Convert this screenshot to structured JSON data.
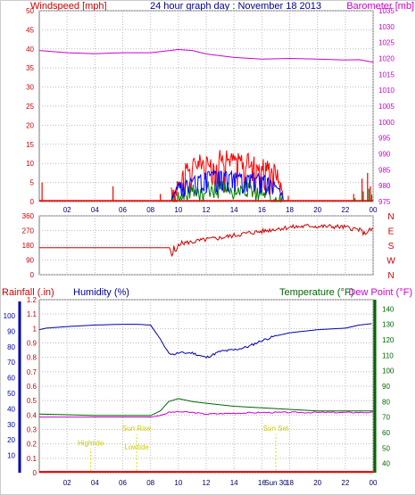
{
  "header": {
    "windspeed_label": "Windspeed [mph]",
    "title": "24 hour graph day : November 18 2013",
    "barometer_label": "Barometer [mb]"
  },
  "bottom_header": {
    "rainfall_label": "Rainfall (.in)",
    "humidity_label": "Humidity (%)",
    "temperature_label": "Temperature (°F)",
    "dewpoint_label": "Dew Point (°F)"
  },
  "colors": {
    "wind": "#ff0000",
    "gust": "#ff0000",
    "avg": "#0000ff",
    "low": "#008000",
    "barometer": "#cc00cc",
    "direction": "#cc0000",
    "humidity": "#0000aa",
    "temperature": "#006600",
    "dewpoint": "#cc00cc",
    "rain": "#ff0000",
    "events": "#dddd00",
    "grid": "#bbbbbb"
  },
  "chart_data": [
    {
      "type": "bar",
      "name": "wind-panel",
      "x_ticks": [
        "02",
        "04",
        "06",
        "08",
        "10",
        "12",
        "14",
        "16",
        "18",
        "20",
        "22",
        "00"
      ],
      "y_left_ticks": [
        "0",
        "5",
        "10",
        "15",
        "20",
        "25",
        "30",
        "35",
        "40",
        "45",
        "50"
      ],
      "y_right_ticks": [
        "975",
        "980",
        "985",
        "990",
        "995",
        "1000",
        "1005",
        "1010",
        "1015",
        "1020",
        "1025",
        "1030",
        "1035"
      ],
      "ylim_left": [
        0,
        50
      ],
      "ylim_right": [
        975,
        1035
      ],
      "barometer_series": {
        "x": [
          0,
          2,
          4,
          6,
          8,
          10,
          11,
          12,
          14,
          16,
          18,
          20,
          22,
          23,
          24
        ],
        "y": [
          1022.5,
          1021.8,
          1021.5,
          1021.8,
          1021.8,
          1022.8,
          1022.5,
          1021.4,
          1020.3,
          1019.8,
          1020.0,
          1019.8,
          1019.5,
          1019.6,
          1018.8
        ]
      },
      "wind_gust_envelope": {
        "x": [
          9.5,
          10,
          11,
          12,
          13,
          14,
          15,
          16,
          17,
          17.6
        ],
        "y": [
          2,
          6,
          9.5,
          11,
          11.5,
          11,
          10.5,
          10,
          8,
          1
        ]
      },
      "wind_avg_envelope": {
        "x": [
          9.5,
          10,
          11,
          12,
          13,
          14,
          15,
          16,
          17,
          17.6
        ],
        "y": [
          1,
          4,
          6,
          7.5,
          7.5,
          7,
          7,
          6.5,
          4.5,
          0.5
        ]
      },
      "wind_low_envelope": {
        "x": [
          9.5,
          10,
          11,
          12,
          13,
          14,
          15,
          16,
          17,
          17.6
        ],
        "y": [
          0.5,
          1.5,
          2.5,
          4,
          3.5,
          3.5,
          3,
          2.5,
          1.5,
          0
        ]
      },
      "wind_spikes": {
        "x": [
          0.2,
          5.3,
          8.7,
          9.7,
          17.9,
          22.6,
          23.2,
          23.6,
          23.8
        ],
        "y": [
          5,
          4,
          2,
          2,
          1.5,
          2,
          6,
          7.5,
          4
        ]
      }
    },
    {
      "type": "line",
      "name": "direction-panel",
      "x_ticks": [
        "02",
        "04",
        "06",
        "08",
        "10",
        "12",
        "14",
        "16",
        "18",
        "20",
        "22",
        "00"
      ],
      "y_ticks": [
        "0",
        "90",
        "180",
        "270",
        "360"
      ],
      "compass": [
        "N",
        "W",
        "S",
        "E",
        "N"
      ],
      "ylim": [
        0,
        360
      ],
      "x": [
        0,
        9.4,
        9.45,
        9.55,
        9.7,
        9.8,
        10,
        11,
        12,
        13,
        14,
        15,
        16,
        17,
        18,
        19,
        19.5,
        20,
        21,
        22,
        23,
        23.4,
        23.6,
        24
      ],
      "y": [
        165,
        165,
        140,
        105,
        175,
        120,
        190,
        200,
        215,
        225,
        240,
        255,
        265,
        280,
        290,
        295,
        300,
        295,
        295,
        290,
        275,
        250,
        265,
        280
      ]
    },
    {
      "type": "line",
      "name": "humidity-temperature-panel",
      "x_ticks": [
        "02",
        "04",
        "06",
        "08",
        "10",
        "12",
        "14",
        "16",
        "18",
        "20",
        "22",
        "00"
      ],
      "rain_ticks": [
        "0",
        "0.1",
        "0.2",
        "0.3",
        "0.4",
        "0.5",
        "0.6",
        "0.7",
        "0.8",
        "0.9",
        "1",
        "1.1",
        "1.2"
      ],
      "humidity_ticks": [
        "10",
        "20",
        "30",
        "40",
        "50",
        "60",
        "70",
        "80",
        "90",
        "100"
      ],
      "temp_ticks": [
        "40",
        "50",
        "60",
        "70",
        "80",
        "90",
        "100",
        "110",
        "120",
        "130",
        "140"
      ],
      "rain_ylim": [
        0,
        1.2
      ],
      "temp_ylim": [
        34,
        146
      ],
      "humidity": {
        "x": [
          0,
          0.5,
          2,
          4,
          6,
          7,
          8,
          8.7,
          9.2,
          9.6,
          10,
          11,
          12,
          13,
          14,
          15,
          16,
          17,
          18,
          20,
          22,
          23,
          24
        ],
        "y": [
          91,
          92,
          93,
          94,
          94.5,
          94.5,
          94,
          85,
          77,
          75,
          76,
          76,
          73,
          77,
          78,
          80,
          84,
          87,
          89,
          91,
          92,
          94,
          95
        ]
      },
      "temperature": {
        "x": [
          0,
          2,
          4,
          6,
          8,
          8.7,
          9.3,
          10,
          11,
          12,
          14,
          16,
          18,
          20,
          22,
          24
        ],
        "y": [
          72,
          71.5,
          71,
          71,
          71,
          74,
          80,
          82,
          80,
          79,
          77,
          76,
          75,
          74,
          74,
          74
        ]
      },
      "dewpoint": {
        "x": [
          0,
          2,
          4,
          6,
          8,
          8.7,
          9.3,
          10,
          11,
          12,
          14,
          16,
          18,
          20,
          22,
          24
        ],
        "y": [
          70,
          70,
          70,
          70,
          70,
          71,
          73,
          73.5,
          73,
          72,
          72.5,
          73,
          73,
          73,
          73,
          73
        ]
      },
      "rainfall": {
        "x": [
          0,
          24
        ],
        "y": [
          0,
          0
        ]
      },
      "events": [
        {
          "label": "Hightide",
          "x": 3.7,
          "y": 0.19
        },
        {
          "label": "Sun Rise",
          "x": 7.0,
          "y": 0.29
        },
        {
          "label": "Lowtide",
          "x": 7.0,
          "y": 0.16
        },
        {
          "label": "Sun Set",
          "x": 17.0,
          "y": 0.29
        }
      ],
      "axis_date": "Sun 30"
    }
  ]
}
